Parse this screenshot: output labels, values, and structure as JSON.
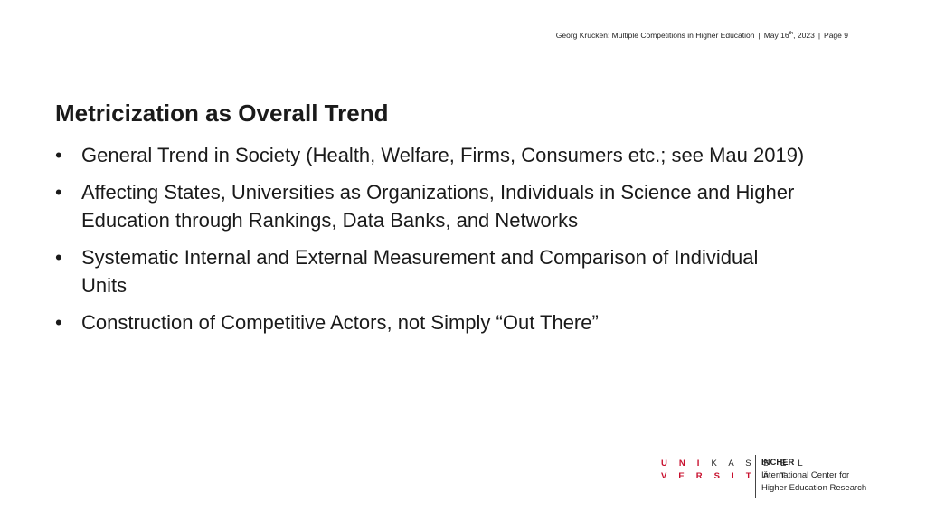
{
  "header": {
    "author_talk": "Georg Krücken: Multiple Competitions in Higher Education",
    "date_prefix": "May 16",
    "date_suffix": "th",
    "date_year": ", 2023",
    "separator": "|",
    "page_label": "Page",
    "page_number": "9"
  },
  "slide": {
    "title": "Metricization as Overall Trend",
    "bullet_symbol": "•",
    "bullets": [
      "General Trend in Society (Health, Welfare, Firms, Consumers etc.; see Mau 2019)",
      "Affecting States, Universities as Organizations, Individuals in Science and Higher Education through Rankings, Data Banks, and Networks",
      "Systematic Internal and External Measurement and Comparison of Individual Units",
      "Construction of Competitive Actors, not Simply “Out There”"
    ]
  },
  "logo": {
    "uni_line1_red": "U N I",
    "uni_line1_dark": "K A S S E L",
    "uni_line2_red": "V E R S I T",
    "uni_line2_dark": "Ä T",
    "incher_name": "INCHER",
    "incher_line1": "International Center for",
    "incher_line2": "Higher Education Research"
  },
  "colors": {
    "accent_red": "#c8102e",
    "text": "#1a1a1a"
  }
}
